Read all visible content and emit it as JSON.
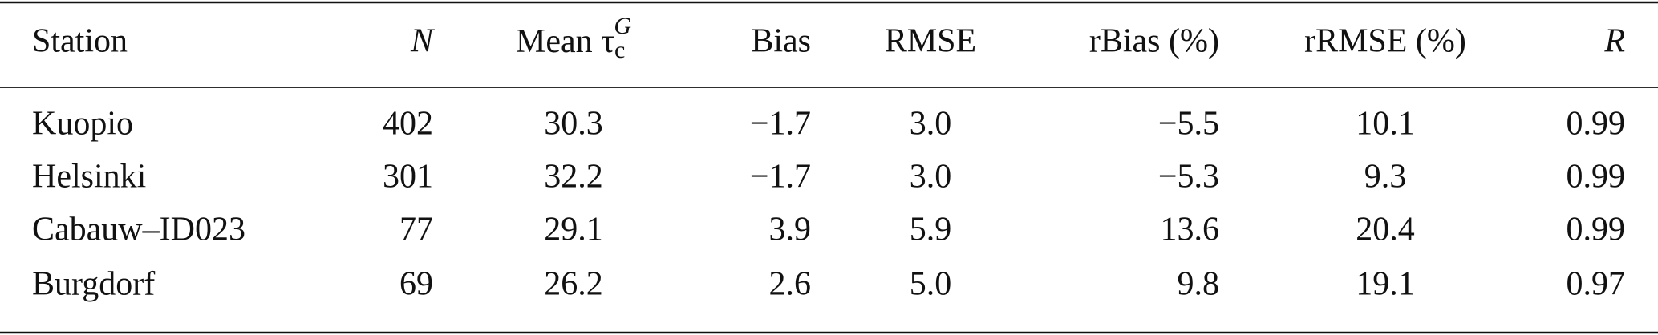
{
  "table": {
    "header": [
      "Station",
      "N",
      {
        "main": "Mean τ",
        "sub": "c",
        "sup": "G"
      },
      "Bias",
      "RMSE",
      "rBias (%)",
      "rRMSE (%)",
      "R"
    ],
    "rows": [
      [
        "Kuopio",
        "402",
        "30.3",
        "−1.7",
        "3.0",
        "−5.5",
        "10.1",
        "0.99"
      ],
      [
        "Helsinki",
        "301",
        "32.2",
        "−1.7",
        "3.0",
        "−5.3",
        "9.3",
        "0.99"
      ],
      [
        "Cabauw–ID023",
        "77",
        "29.1",
        "3.9",
        "5.9",
        "13.6",
        "20.4",
        "0.99"
      ],
      [
        "Burgdorf",
        "69",
        "26.2",
        "2.6",
        "5.0",
        "9.8",
        "19.1",
        "0.97"
      ]
    ]
  }
}
